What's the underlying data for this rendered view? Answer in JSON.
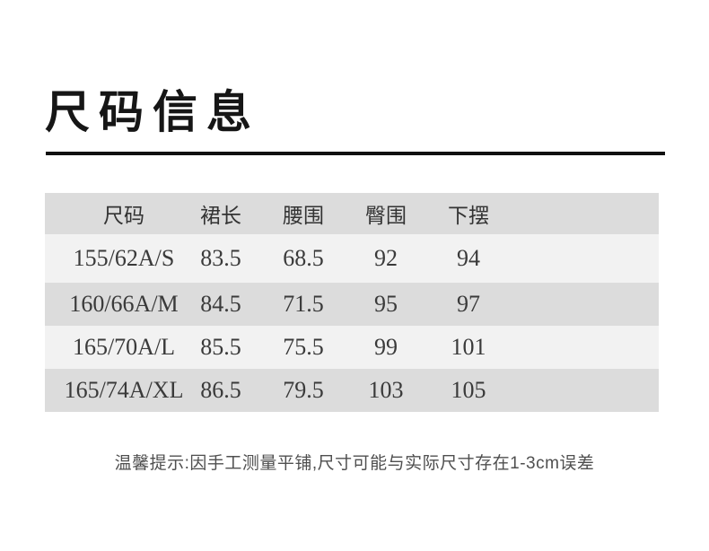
{
  "header": {
    "title": "尺码信息"
  },
  "size_table": {
    "columns": [
      "尺码",
      "裙长",
      "腰围",
      "臀围",
      "下摆"
    ],
    "rows": [
      [
        "155/62A/S",
        "83.5",
        "68.5",
        "92",
        "94"
      ],
      [
        "160/66A/M",
        "84.5",
        "71.5",
        "95",
        "97"
      ],
      [
        "165/70A/L",
        "85.5",
        "75.5",
        "99",
        "101"
      ],
      [
        "165/74A/XL",
        "86.5",
        "79.5",
        "103",
        "105"
      ]
    ]
  },
  "footer": {
    "note": "温馨提示:因手工测量平铺,尺寸可能与实际尺寸存在1-3cm误差"
  },
  "colors": {
    "header_row_bg": "#dcdcdc",
    "row_alt_bg": "#f2f2f2",
    "underline": "#111111",
    "table_text": "#3a3a3a",
    "note_text": "#4f4f4f"
  }
}
